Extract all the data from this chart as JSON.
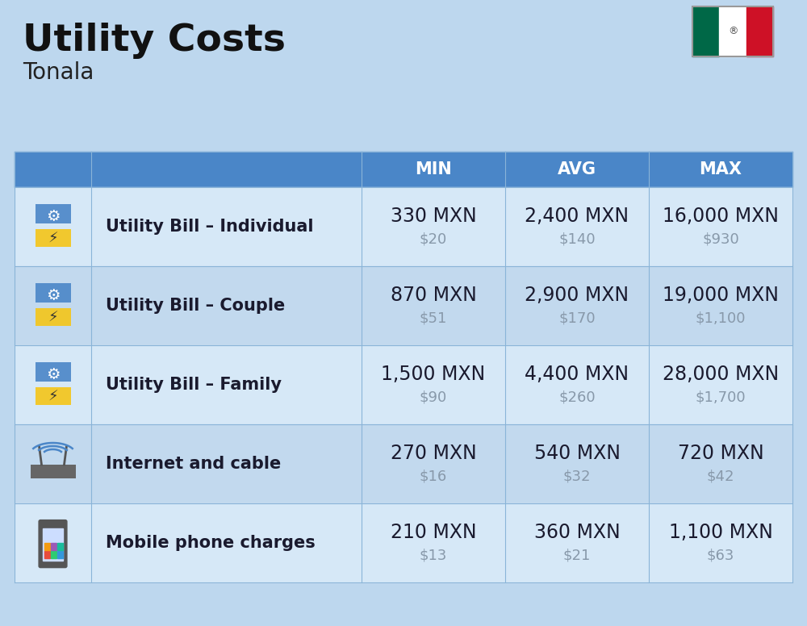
{
  "title": "Utility Costs",
  "subtitle": "Tonala",
  "background_color": "#bdd7ee",
  "header_bg_color": "#4a86c8",
  "header_text_color": "#ffffff",
  "row_bg_color_light": "#d6e8f7",
  "row_bg_color_dark": "#c2d9ee",
  "divider_color": "#8ab4d8",
  "headers": [
    "MIN",
    "AVG",
    "MAX"
  ],
  "rows": [
    {
      "label": "Utility Bill – Individual",
      "min_mxn": "330 MXN",
      "min_usd": "$20",
      "avg_mxn": "2,400 MXN",
      "avg_usd": "$140",
      "max_mxn": "16,000 MXN",
      "max_usd": "$930"
    },
    {
      "label": "Utility Bill – Couple",
      "min_mxn": "870 MXN",
      "min_usd": "$51",
      "avg_mxn": "2,900 MXN",
      "avg_usd": "$170",
      "max_mxn": "19,000 MXN",
      "max_usd": "$1,100"
    },
    {
      "label": "Utility Bill – Family",
      "min_mxn": "1,500 MXN",
      "min_usd": "$90",
      "avg_mxn": "4,400 MXN",
      "avg_usd": "$260",
      "max_mxn": "28,000 MXN",
      "max_usd": "$1,700"
    },
    {
      "label": "Internet and cable",
      "min_mxn": "270 MXN",
      "min_usd": "$16",
      "avg_mxn": "540 MXN",
      "avg_usd": "$32",
      "max_mxn": "720 MXN",
      "max_usd": "$42"
    },
    {
      "label": "Mobile phone charges",
      "min_mxn": "210 MXN",
      "min_usd": "$13",
      "avg_mxn": "360 MXN",
      "avg_usd": "$21",
      "max_mxn": "1,100 MXN",
      "max_usd": "$63"
    }
  ],
  "title_fontsize": 34,
  "subtitle_fontsize": 20,
  "header_fontsize": 15,
  "label_fontsize": 15,
  "value_fontsize": 17,
  "usd_fontsize": 13,
  "flag_colors": [
    "#006847",
    "#ffffff",
    "#ce1126"
  ],
  "mxn_text_color": "#1a1a2e",
  "usd_text_color": "#8899aa",
  "label_color": "#1a1a2e"
}
